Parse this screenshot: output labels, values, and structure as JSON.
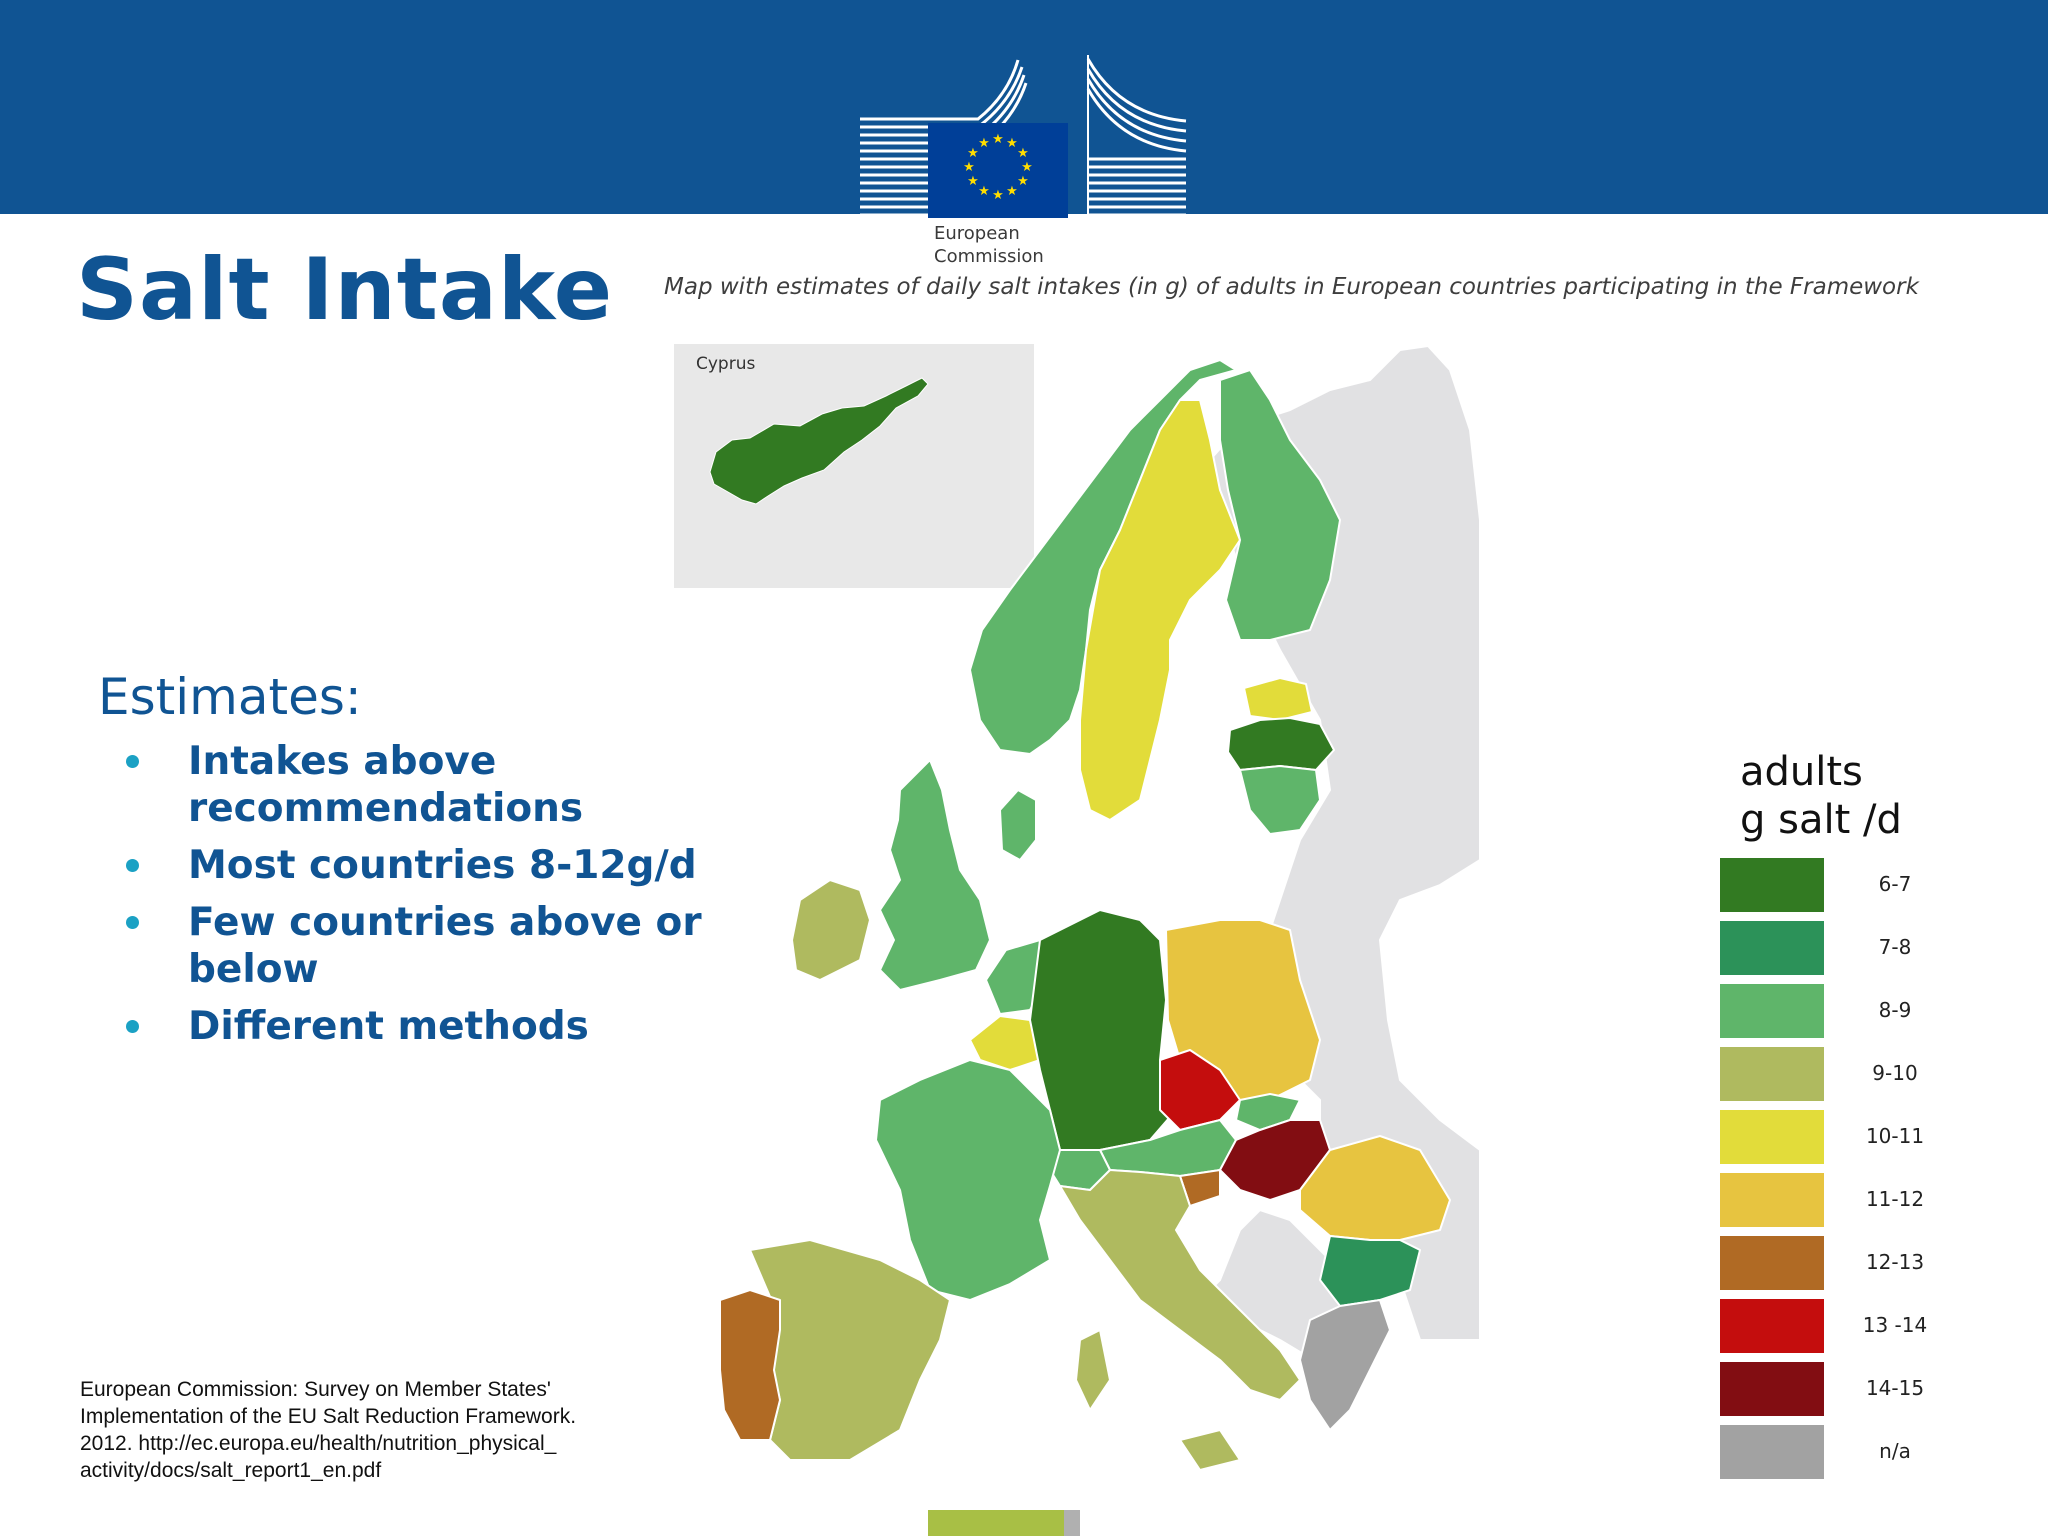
{
  "header": {
    "logo_line1": "European",
    "logo_line2": "Commission"
  },
  "title": "Salt Intake",
  "map_caption": "Map with estimates of daily salt intakes (in g) of adults in European countries participating in the Framework",
  "inset_label": "Cyprus",
  "estimates": {
    "heading": "Estimates:",
    "bullets": [
      {
        "line1": "Intakes above",
        "line2": "recommendations"
      },
      {
        "line1": "Most countries 8-12g/d",
        "line2": ""
      },
      {
        "line1": "Few countries above or",
        "line2": "below"
      },
      {
        "line1": "Different methods",
        "line2": ""
      }
    ]
  },
  "source": {
    "line1": "European Commission: Survey  on Member States'",
    "line2": "Implementation of the EU Salt Reduction Framework.",
    "line3": "2012. http://ec.europa.eu/health/nutrition_physical_",
    "line4": "activity/docs/salt_report1_en.pdf"
  },
  "legend": {
    "title_line1": "adults",
    "title_line2": "g salt /d",
    "items": [
      {
        "label": "6-7",
        "color": "#327a22"
      },
      {
        "label": "7-8",
        "color": "#2c9259"
      },
      {
        "label": "8-9",
        "color": "#5fb56a"
      },
      {
        "label": "9-10",
        "color": "#afba5f"
      },
      {
        "label": "10-11",
        "color": "#e2dc3a"
      },
      {
        "label": "11-12",
        "color": "#e7c440"
      },
      {
        "label": "12-13",
        "color": "#b06a24"
      },
      {
        "label": "13 -14",
        "color": "#c40d0d"
      },
      {
        "label": "14-15",
        "color": "#820d12"
      },
      {
        "label": "n/a",
        "color": "#a2a2a2"
      }
    ]
  },
  "map_colors": {
    "land_other": "#e1e1e3",
    "border": "#ffffff",
    "cyprus": "#327a22",
    "germany": "#327a22",
    "latvia": "#327a22",
    "bulgaria": "#2c9259",
    "norway": "#5fb56a",
    "finland": "#5fb56a",
    "uk": "#5fb56a",
    "france": "#5fb56a",
    "denmark": "#5fb56a",
    "netherlands": "#5fb56a",
    "lithuania": "#5fb56a",
    "austria": "#5fb56a",
    "slovakia": "#5fb56a",
    "switzerland": "#5fb56a",
    "ireland": "#afba5f",
    "spain": "#afba5f",
    "italy": "#afba5f",
    "sweden": "#e2dc3a",
    "estonia": "#e2dc3a",
    "belgium": "#e2dc3a",
    "poland": "#e7c440",
    "romania": "#e7c440",
    "portugal": "#b06a24",
    "slovenia": "#b06a24",
    "czech": "#c40d0d",
    "hungary": "#820d12",
    "greece": "#a2a2a2"
  }
}
